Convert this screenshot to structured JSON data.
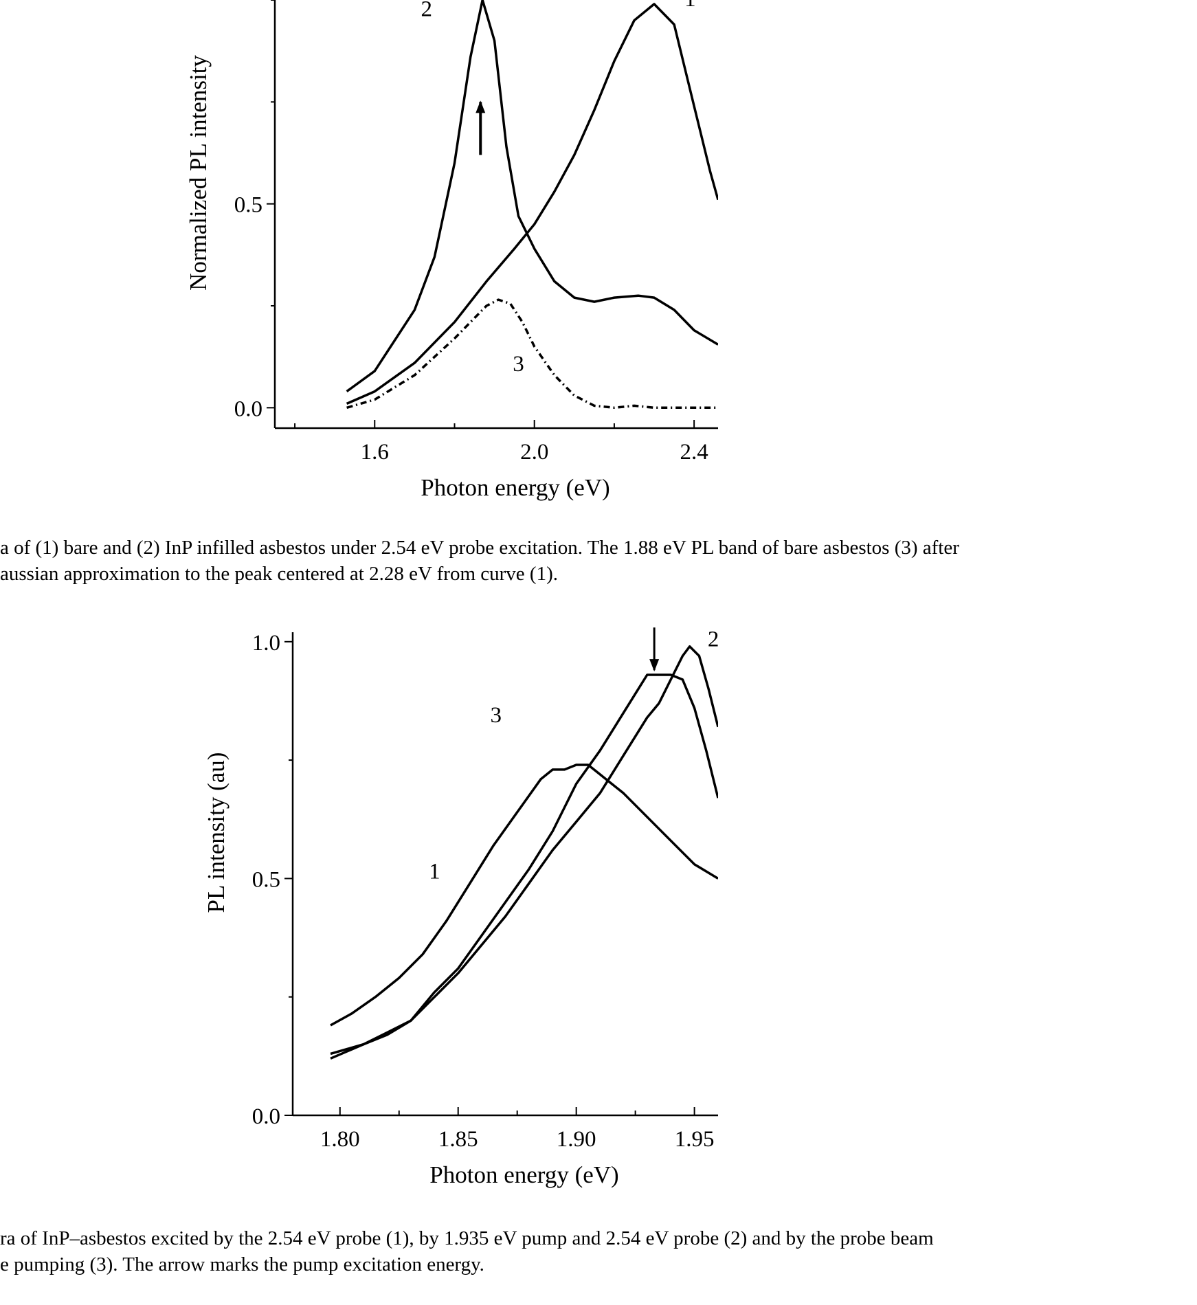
{
  "colors": {
    "ink": "#000000",
    "background": "#ffffff"
  },
  "chart_data": [
    {
      "type": "line",
      "xlabel": "Photon energy (eV)",
      "ylabel": "Normalized PL intensity",
      "xlim": [
        1.35,
        2.46
      ],
      "ylim": [
        -0.05,
        1.0
      ],
      "xticks": [
        1.6,
        2.0,
        2.4
      ],
      "xtick_labels": [
        "1.6",
        "2.0",
        "2.4"
      ],
      "yticks": [
        0.0,
        0.5
      ],
      "ytick_labels": [
        "0.0",
        "0.5"
      ],
      "grid": false,
      "series": [
        {
          "name": "1",
          "label": "1",
          "style": "solid",
          "x": [
            1.53,
            1.6,
            1.7,
            1.8,
            1.88,
            1.95,
            2.0,
            2.05,
            2.1,
            2.15,
            2.2,
            2.25,
            2.3,
            2.35,
            2.4,
            2.44,
            2.46
          ],
          "y": [
            0.01,
            0.04,
            0.11,
            0.21,
            0.31,
            0.39,
            0.45,
            0.53,
            0.62,
            0.73,
            0.85,
            0.95,
            0.99,
            0.94,
            0.74,
            0.58,
            0.51
          ]
        },
        {
          "name": "2",
          "label": "2",
          "style": "solid",
          "x": [
            1.53,
            1.6,
            1.7,
            1.75,
            1.8,
            1.84,
            1.87,
            1.9,
            1.93,
            1.96,
            2.0,
            2.05,
            2.1,
            2.15,
            2.2,
            2.26,
            2.3,
            2.35,
            2.4,
            2.46
          ],
          "y": [
            0.04,
            0.09,
            0.24,
            0.37,
            0.6,
            0.86,
            1.0,
            0.9,
            0.64,
            0.47,
            0.39,
            0.31,
            0.27,
            0.26,
            0.27,
            0.275,
            0.27,
            0.24,
            0.19,
            0.155
          ]
        },
        {
          "name": "3",
          "label": "3",
          "style": "dashed",
          "x": [
            1.53,
            1.6,
            1.7,
            1.8,
            1.85,
            1.88,
            1.91,
            1.94,
            1.97,
            2.0,
            2.05,
            2.1,
            2.15,
            2.2,
            2.25,
            2.3,
            2.35,
            2.4,
            2.46
          ],
          "y": [
            0.0,
            0.02,
            0.08,
            0.17,
            0.22,
            0.25,
            0.265,
            0.255,
            0.21,
            0.15,
            0.08,
            0.03,
            0.005,
            0.0,
            0.005,
            0.0,
            0.0,
            0.0,
            0.0
          ]
        }
      ],
      "annotations": [
        {
          "type": "arrow",
          "direction": "up",
          "x": 1.865,
          "y_from": 0.62,
          "y_to": 0.75
        }
      ]
    },
    {
      "type": "line",
      "xlabel": "Photon energy (eV)",
      "ylabel": "PL intensity (au)",
      "xlim": [
        1.78,
        1.96
      ],
      "ylim": [
        0.0,
        1.02
      ],
      "xticks": [
        1.8,
        1.85,
        1.9,
        1.95
      ],
      "xtick_labels": [
        "1.80",
        "1.85",
        "1.90",
        "1.95"
      ],
      "yticks": [
        0.0,
        0.5,
        1.0
      ],
      "ytick_labels": [
        "0.0",
        "0.5",
        "1.0"
      ],
      "grid": false,
      "series": [
        {
          "name": "1",
          "label": "1",
          "style": "solid",
          "x": [
            1.796,
            1.805,
            1.815,
            1.825,
            1.835,
            1.845,
            1.855,
            1.865,
            1.875,
            1.885,
            1.89,
            1.895,
            1.9,
            1.905,
            1.91,
            1.92,
            1.93,
            1.94,
            1.95,
            1.96
          ],
          "y": [
            0.19,
            0.215,
            0.25,
            0.29,
            0.34,
            0.41,
            0.49,
            0.57,
            0.64,
            0.71,
            0.73,
            0.73,
            0.74,
            0.74,
            0.72,
            0.68,
            0.63,
            0.58,
            0.53,
            0.5
          ]
        },
        {
          "name": "2",
          "label": "2",
          "style": "solid",
          "x": [
            1.796,
            1.81,
            1.82,
            1.83,
            1.84,
            1.85,
            1.86,
            1.87,
            1.88,
            1.89,
            1.9,
            1.91,
            1.92,
            1.93,
            1.935,
            1.94,
            1.945,
            1.948,
            1.952,
            1.956,
            1.96
          ],
          "y": [
            0.12,
            0.15,
            0.17,
            0.2,
            0.25,
            0.3,
            0.36,
            0.42,
            0.49,
            0.56,
            0.62,
            0.68,
            0.76,
            0.84,
            0.87,
            0.92,
            0.97,
            0.99,
            0.97,
            0.9,
            0.82
          ]
        },
        {
          "name": "3",
          "label": "3",
          "style": "solid",
          "x": [
            1.796,
            1.81,
            1.82,
            1.83,
            1.84,
            1.85,
            1.86,
            1.87,
            1.88,
            1.89,
            1.895,
            1.9,
            1.91,
            1.92,
            1.925,
            1.93,
            1.94,
            1.945,
            1.95,
            1.955,
            1.96
          ],
          "y": [
            0.13,
            0.15,
            0.175,
            0.2,
            0.26,
            0.31,
            0.38,
            0.45,
            0.52,
            0.6,
            0.65,
            0.7,
            0.77,
            0.85,
            0.89,
            0.93,
            0.93,
            0.92,
            0.86,
            0.77,
            0.67
          ]
        }
      ],
      "annotations": [
        {
          "type": "arrow",
          "direction": "down",
          "x": 1.933,
          "y_from": 1.03,
          "y_to": 0.94
        }
      ]
    }
  ],
  "captions": {
    "top": [
      "a of (1) bare and (2) InP infilled asbestos under 2.54 eV probe excitation. The 1.88 eV PL band of bare asbestos (3) after",
      "aussian approximation to the peak centered at 2.28 eV from curve (1)."
    ],
    "bottom": [
      "ra of InP–asbestos excited by the 2.54 eV probe (1), by 1.935 eV pump and 2.54 eV probe (2) and by the probe beam",
      "e pumping (3). The arrow marks the pump excitation energy."
    ]
  }
}
